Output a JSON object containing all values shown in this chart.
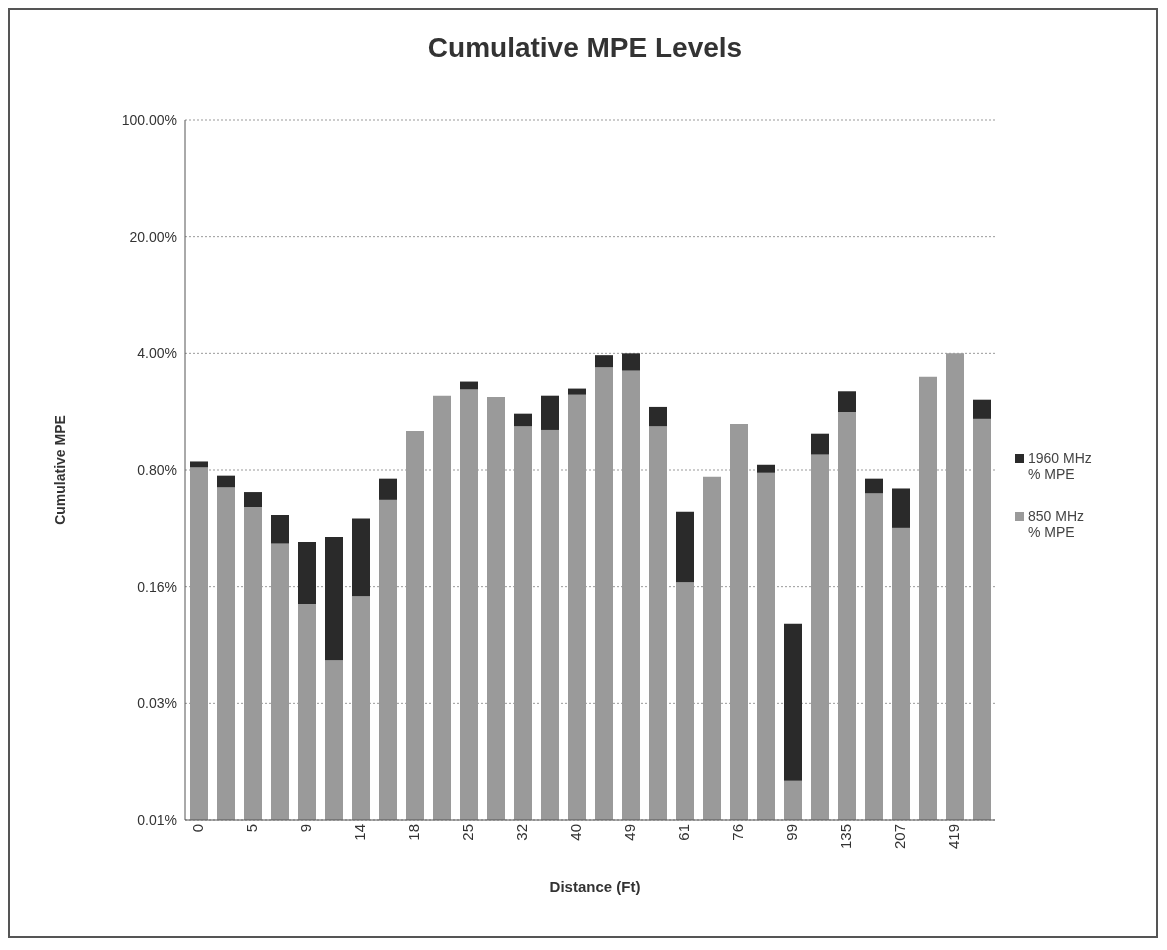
{
  "chart_data": {
    "type": "bar",
    "title": "Cumulative MPE Levels",
    "xlabel": "Distance (Ft)",
    "ylabel": "Cumulative MPE",
    "categories": [
      "0",
      null,
      "5",
      null,
      "9",
      null,
      "14",
      null,
      "18",
      null,
      "25",
      null,
      "32",
      null,
      "40",
      null,
      "49",
      null,
      "61",
      null,
      "76",
      null,
      "99",
      null,
      "135",
      null,
      "207",
      null,
      "419",
      null
    ],
    "stacked": true,
    "log": true,
    "grid": "y",
    "legend": "right",
    "ylim": [
      0.0064,
      100
    ],
    "yticks": [
      {
        "value": 0.0064,
        "label": "0.01%"
      },
      {
        "value": 0.032,
        "label": "0.03%"
      },
      {
        "value": 0.16,
        "label": "0.16%"
      },
      {
        "value": 0.8,
        "label": "0.80%"
      },
      {
        "value": 4,
        "label": "4.00%"
      },
      {
        "value": 20,
        "label": "20.00%"
      },
      {
        "value": 100,
        "label": "100.00%"
      }
    ],
    "series": [
      {
        "name": "850 MHz % MPE",
        "color": "#9a9a9a",
        "values": [
          0.83,
          0.63,
          0.48,
          0.29,
          0.126,
          0.058,
          0.14,
          0.53,
          1.37,
          2.23,
          2.43,
          2.19,
          1.46,
          1.39,
          2.26,
          3.3,
          3.15,
          1.46,
          0.17,
          0.73,
          1.51,
          0.77,
          0.011,
          0.99,
          1.78,
          0.58,
          0.36,
          2.9,
          4.0,
          1.62
        ]
      },
      {
        "name": "1960 MHz % MPE",
        "color": "#2a2a2a",
        "values": [
          0.07,
          0.11,
          0.11,
          0.14,
          0.17,
          0.26,
          0.27,
          0.18,
          null,
          null,
          0.28,
          null,
          0.28,
          0.84,
          0.2,
          0.6,
          0.85,
          0.45,
          0.28,
          null,
          null,
          0.09,
          0.085,
          0.33,
          0.59,
          0.13,
          0.26,
          null,
          null,
          0.49
        ]
      }
    ]
  }
}
